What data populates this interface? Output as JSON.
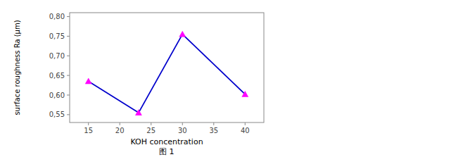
{
  "chart_data": {
    "type": "line",
    "x": [
      15,
      23,
      30,
      40
    ],
    "values": [
      0.635,
      0.555,
      0.755,
      0.602
    ],
    "color": "#0000CC",
    "colors": [
      "#FF00FF",
      "#FF00FF",
      "#FF00FF",
      "#FF00FF"
    ],
    "marker": "triangle",
    "x_label": "KOH concentration",
    "y_label": "surface roughness Ra (μm)",
    "xlim": [
      12,
      43
    ],
    "ylim": [
      0.53,
      0.81
    ],
    "xticks": [
      15,
      20,
      25,
      30,
      35,
      40
    ],
    "yticks": [
      {
        "value": 0.55,
        "label": "0,55"
      },
      {
        "value": 0.6,
        "label": "0,60"
      },
      {
        "value": 0.65,
        "label": "0,65"
      },
      {
        "value": 0.7,
        "label": "0,70"
      },
      {
        "value": 0.75,
        "label": "0,75"
      },
      {
        "value": 0.8,
        "label": "0,80"
      }
    ],
    "annotations": [
      "图 1"
    ],
    "grid": false
  }
}
